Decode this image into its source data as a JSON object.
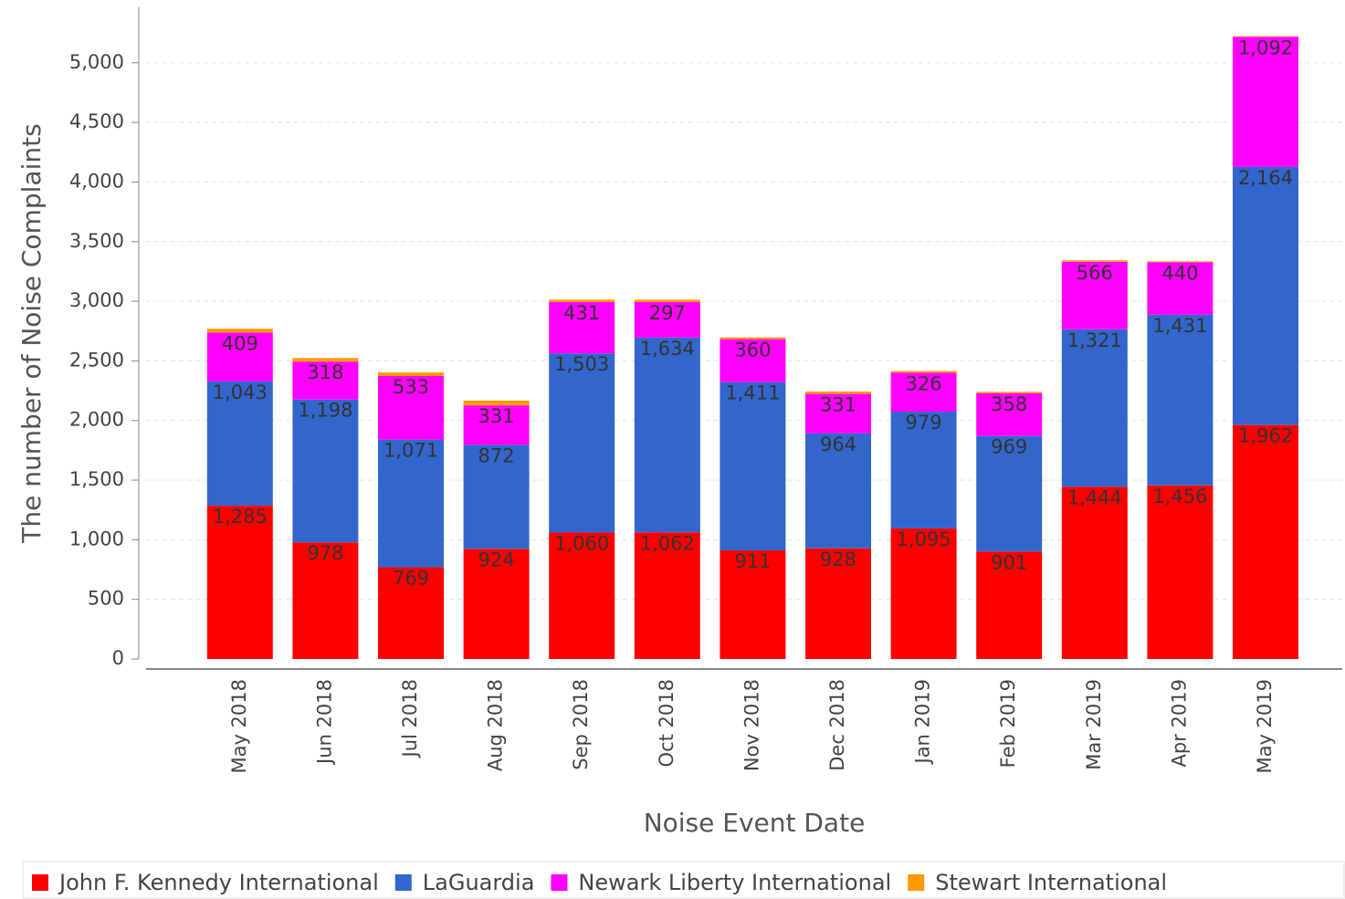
{
  "chart_data": {
    "type": "stacked_bar",
    "x_label": "Noise Event Date",
    "y_label": "The number of Noise Complaints",
    "categories": [
      "May 2018",
      "Jun 2018",
      "Jul 2018",
      "Aug 2018",
      "Sep 2018",
      "Oct 2018",
      "Nov 2018",
      "Dec 2018",
      "Jan 2019",
      "Feb 2019",
      "Mar 2019",
      "Apr 2019",
      "May 2019"
    ],
    "series": [
      {
        "name": "John F. Kennedy International",
        "color": "#ff0000",
        "values": [
          1285,
          978,
          769,
          924,
          1060,
          1062,
          911,
          928,
          1095,
          901,
          1444,
          1456,
          1962
        ],
        "value_labels": [
          "1,285",
          "978",
          "769",
          "924",
          "1,060",
          "1,062",
          "911",
          "928",
          "1,095",
          "901",
          "1,444",
          "1,456",
          "1,962"
        ]
      },
      {
        "name": "LaGuardia",
        "color": "#3366cc",
        "values": [
          1043,
          1198,
          1071,
          872,
          1503,
          1634,
          1411,
          964,
          979,
          969,
          1321,
          1431,
          2164
        ],
        "value_labels": [
          "1,043",
          "1,198",
          "1,071",
          "872",
          "1,503",
          "1,634",
          "1,411",
          "964",
          "979",
          "969",
          "1,321",
          "1,431",
          "2,164"
        ]
      },
      {
        "name": "Newark Liberty International",
        "color": "#ff00ff",
        "values": [
          409,
          318,
          533,
          331,
          431,
          297,
          360,
          331,
          326,
          358,
          566,
          440,
          1092
        ],
        "value_labels": [
          "409",
          "318",
          "533",
          "331",
          "431",
          "297",
          "360",
          "331",
          "326",
          "358",
          "566",
          "440",
          "1,092"
        ]
      },
      {
        "name": "Stewart International",
        "color": "#ff9900",
        "values": [
          33,
          30,
          30,
          40,
          20,
          20,
          15,
          20,
          15,
          12,
          12,
          8,
          5
        ]
      }
    ],
    "ylim": [
      0,
      5450
    ],
    "yticks": [
      0,
      500,
      {
        "value": 1000,
        "label": "1,000"
      },
      {
        "value": 1500,
        "label": "1,500"
      },
      {
        "value": 2000,
        "label": "2,000"
      },
      {
        "value": 2500,
        "label": "2,500"
      },
      {
        "value": 3000,
        "label": "3,000"
      },
      {
        "value": 3500,
        "label": "3,500"
      },
      {
        "value": 4000,
        "label": "4,000"
      },
      {
        "value": 4500,
        "label": "4,500"
      },
      {
        "value": 5000,
        "label": "5,000"
      }
    ],
    "grid": true,
    "legend": "bottom"
  }
}
